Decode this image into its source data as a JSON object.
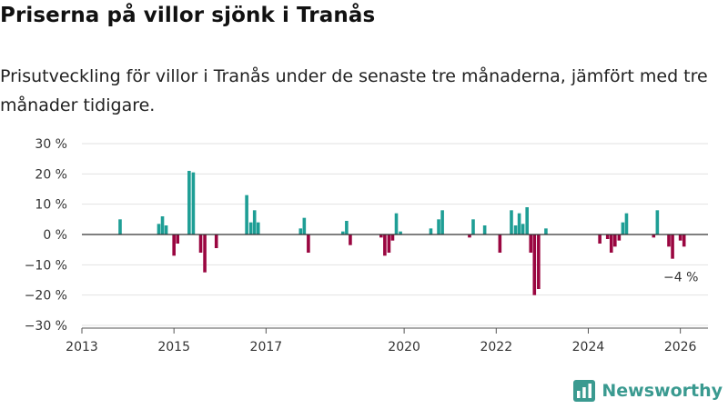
{
  "header": {
    "title": "Priserna på villor sjönk i Tranås",
    "subtitle": "Prisutveckling för villor i Tranås under de senaste tre månaderna, jämfört med tre månader tidigare."
  },
  "branding": {
    "name": "Newsworthy",
    "logo_icon": "bar-chart-icon"
  },
  "colors": {
    "positive": "#1e9e95",
    "negative": "#9a0640",
    "brand": "#3a9a90",
    "grid": "#e2e2e2",
    "zero_line": "#333333"
  },
  "chart_data": {
    "type": "bar",
    "title": "Priserna på villor sjönk i Tranås",
    "xlabel": "",
    "ylabel": "",
    "ylim": [
      -30,
      30
    ],
    "xlim": [
      2013.0,
      2026.6
    ],
    "y_ticks": [
      30,
      20,
      10,
      0,
      -10,
      -20,
      -30
    ],
    "y_tick_labels": [
      "30 %",
      "20 %",
      "10 %",
      "0 %",
      "−10 %",
      "−20 %",
      "−30 %"
    ],
    "x_ticks": [
      2013,
      2015,
      2017,
      2020,
      2022,
      2024,
      2026
    ],
    "x_tick_labels": [
      "2013",
      "2015",
      "2017",
      "2020",
      "2022",
      "2024",
      "2026"
    ],
    "grid": true,
    "annotation": {
      "x": 2025.75,
      "value": -4,
      "label": "−4 %"
    },
    "bars": [
      {
        "x": 2013.83,
        "value": 5
      },
      {
        "x": 2014.67,
        "value": 3.5
      },
      {
        "x": 2014.75,
        "value": 6
      },
      {
        "x": 2014.83,
        "value": 3
      },
      {
        "x": 2015.0,
        "value": -7
      },
      {
        "x": 2015.08,
        "value": -3
      },
      {
        "x": 2015.33,
        "value": 21
      },
      {
        "x": 2015.42,
        "value": 20.5
      },
      {
        "x": 2015.58,
        "value": -6
      },
      {
        "x": 2015.67,
        "value": -12.5
      },
      {
        "x": 2015.92,
        "value": -4.5
      },
      {
        "x": 2016.58,
        "value": 13
      },
      {
        "x": 2016.67,
        "value": 4
      },
      {
        "x": 2016.75,
        "value": 8
      },
      {
        "x": 2016.83,
        "value": 4
      },
      {
        "x": 2017.75,
        "value": 2
      },
      {
        "x": 2017.83,
        "value": 5.5
      },
      {
        "x": 2017.92,
        "value": -6
      },
      {
        "x": 2018.67,
        "value": 1
      },
      {
        "x": 2018.75,
        "value": 4.5
      },
      {
        "x": 2018.83,
        "value": -3.5
      },
      {
        "x": 2019.5,
        "value": -1
      },
      {
        "x": 2019.58,
        "value": -7
      },
      {
        "x": 2019.67,
        "value": -6
      },
      {
        "x": 2019.75,
        "value": -2
      },
      {
        "x": 2019.83,
        "value": 7
      },
      {
        "x": 2019.92,
        "value": 1
      },
      {
        "x": 2020.58,
        "value": 2
      },
      {
        "x": 2020.75,
        "value": 5
      },
      {
        "x": 2020.83,
        "value": 8
      },
      {
        "x": 2021.42,
        "value": -1
      },
      {
        "x": 2021.5,
        "value": 5
      },
      {
        "x": 2021.75,
        "value": 3
      },
      {
        "x": 2022.08,
        "value": -6
      },
      {
        "x": 2022.33,
        "value": 8
      },
      {
        "x": 2022.42,
        "value": 3
      },
      {
        "x": 2022.5,
        "value": 7
      },
      {
        "x": 2022.58,
        "value": 3.5
      },
      {
        "x": 2022.67,
        "value": 9
      },
      {
        "x": 2022.75,
        "value": -6
      },
      {
        "x": 2022.83,
        "value": -20
      },
      {
        "x": 2022.92,
        "value": -18
      },
      {
        "x": 2023.08,
        "value": 2
      },
      {
        "x": 2024.25,
        "value": -3
      },
      {
        "x": 2024.42,
        "value": -1.5
      },
      {
        "x": 2024.5,
        "value": -6
      },
      {
        "x": 2024.58,
        "value": -4
      },
      {
        "x": 2024.67,
        "value": -2
      },
      {
        "x": 2024.75,
        "value": 4
      },
      {
        "x": 2024.83,
        "value": 7
      },
      {
        "x": 2025.42,
        "value": -1
      },
      {
        "x": 2025.5,
        "value": 8
      },
      {
        "x": 2025.75,
        "value": -4
      },
      {
        "x": 2025.83,
        "value": -8
      },
      {
        "x": 2026.0,
        "value": -2
      },
      {
        "x": 2026.08,
        "value": -4
      }
    ]
  }
}
